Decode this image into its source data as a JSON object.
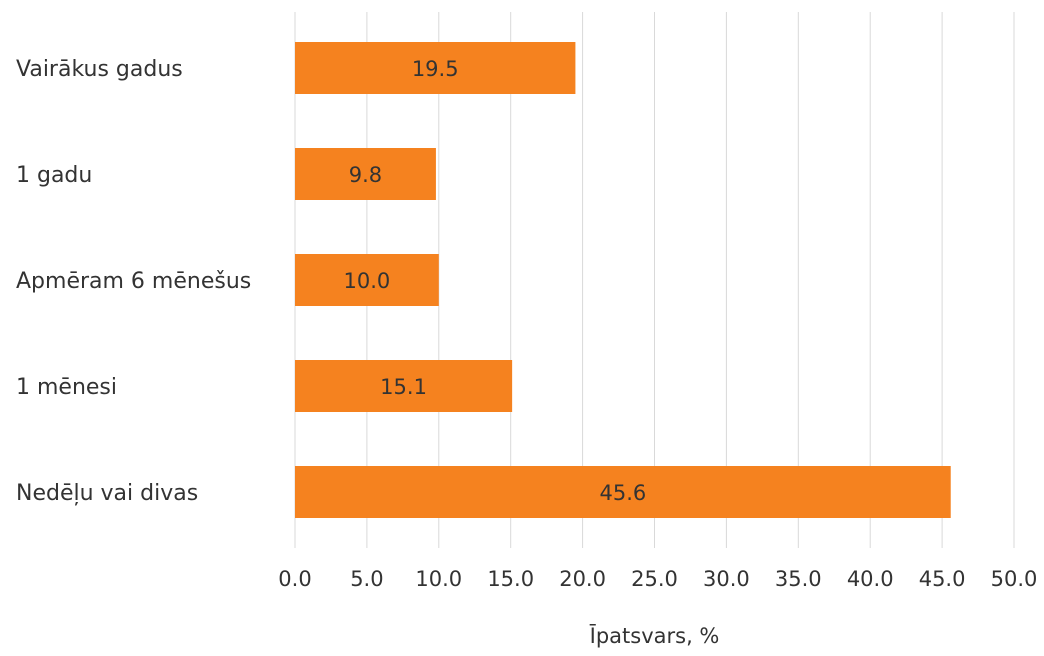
{
  "chart_data": {
    "type": "bar",
    "orientation": "horizontal",
    "categories": [
      "Vairākus gadus",
      "1 gadu",
      "Apmēram 6 mēnešus",
      "1 mēnesi",
      "Nedēļu vai divas"
    ],
    "values": [
      19.5,
      9.8,
      10.0,
      15.1,
      45.6
    ],
    "data_labels": [
      "19.5",
      "9.8",
      "10.0",
      "15.1",
      "45.6"
    ],
    "xlabel": "Īpatsvars, %",
    "ylabel": "",
    "title": "",
    "xlim": [
      0,
      50
    ],
    "x_ticks": [
      "0.0",
      "5.0",
      "10.0",
      "15.0",
      "20.0",
      "25.0",
      "30.0",
      "35.0",
      "40.0",
      "45.0",
      "50.0"
    ],
    "grid": "vertical",
    "legend": "none",
    "colors": {
      "bar": "#F5821F",
      "grid": "#D9D9D9",
      "text": "#333333"
    }
  }
}
